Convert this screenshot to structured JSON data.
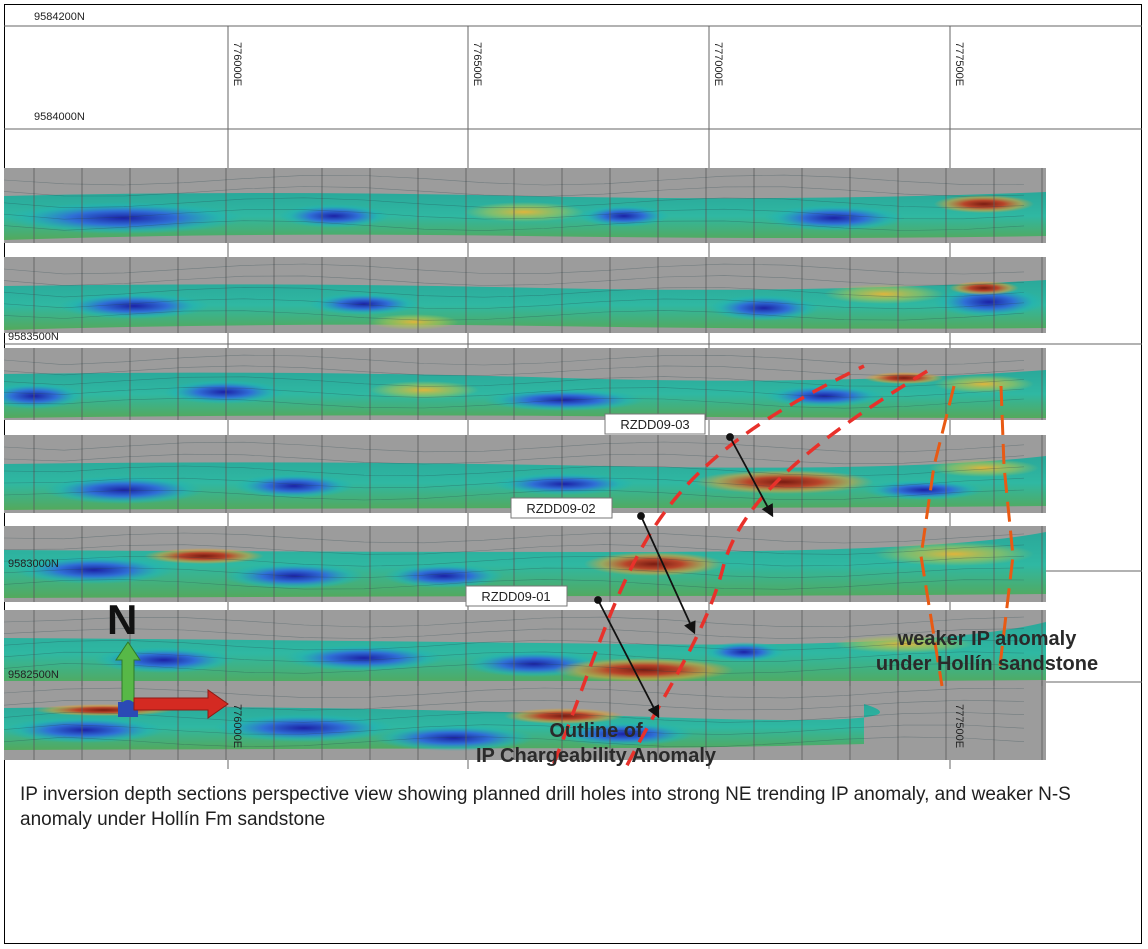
{
  "northings": [
    {
      "label": "9584200N"
    },
    {
      "label": "9584000N"
    },
    {
      "label": "9583500N"
    },
    {
      "label": "9583000N"
    },
    {
      "label": "9582500N"
    }
  ],
  "eastings_top": [
    "776000E",
    "776500E",
    "777000E",
    "777500E"
  ],
  "eastings_bottom": [
    "776000E",
    "777500E"
  ],
  "drill_holes": [
    {
      "label": "RZDD09-03"
    },
    {
      "label": "RZDD09-02"
    },
    {
      "label": "RZDD09-01"
    }
  ],
  "annotations": {
    "ne_anomaly": [
      "Outline of",
      "IP Chargeability Anomaly"
    ],
    "ns_anomaly": [
      "weaker IP anomaly",
      "under Hollín sandstone"
    ]
  },
  "north_arrow_label": "N",
  "caption": "IP inversion depth sections perspective view showing planned drill holes into strong NE trending IP anomaly, and weaker N-S anomaly under Hollín Fm sandstone",
  "colors": {
    "section_bg": "#9c9c9c",
    "anomaly_outline": "#e8312b",
    "ns_outline": "#e85a14",
    "high_chargeability": "#8b2a1a",
    "low_chargeability": "#1f2fa8"
  }
}
